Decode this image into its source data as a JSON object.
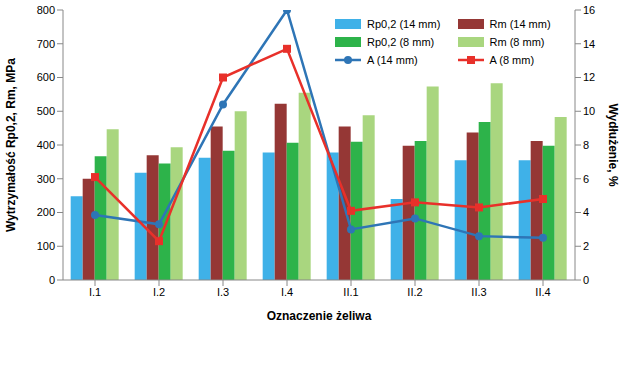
{
  "chart_data": {
    "type": "bar",
    "x_label": "Oznaczenie żeliwa",
    "y_label": "Wytrzymałość Rp0,2, Rm, MPa",
    "y2_label": "Wydłużenie, %",
    "categories": [
      "I.1",
      "I.2",
      "I.3",
      "I.4",
      "II.1",
      "II.2",
      "II.3",
      "II.4"
    ],
    "ylim": [
      0,
      800
    ],
    "yticks": [
      0,
      100,
      200,
      300,
      400,
      500,
      600,
      700,
      800
    ],
    "y2lim": [
      0,
      16
    ],
    "y2ticks": [
      0,
      2,
      4,
      6,
      8,
      10,
      12,
      14,
      16
    ],
    "grid": false,
    "legend": "upper right",
    "series": [
      {
        "name": "Rp0,2 (14 mm)",
        "type": "bar",
        "color": "#3fb1e8",
        "values": [
          248,
          318,
          362,
          378,
          378,
          240,
          355,
          355
        ]
      },
      {
        "name": "Rm (14 mm)",
        "type": "bar",
        "color": "#953735",
        "values": [
          300,
          370,
          455,
          522,
          455,
          398,
          437,
          412
        ]
      },
      {
        "name": "Rp0,2 (8 mm)",
        "type": "bar",
        "color": "#2db34a",
        "values": [
          367,
          345,
          383,
          407,
          410,
          412,
          468,
          398
        ]
      },
      {
        "name": "Rm (8 mm)",
        "type": "bar",
        "color": "#a9d67f",
        "values": [
          447,
          393,
          500,
          555,
          488,
          573,
          583,
          483
        ]
      },
      {
        "name": "A (14 mm)",
        "type": "line",
        "axis": "y2",
        "color": "#2e75b6",
        "marker": "circle",
        "values": [
          3.85,
          3.3,
          10.4,
          16.0,
          3.0,
          3.65,
          2.6,
          2.5
        ]
      },
      {
        "name": "A (8 mm)",
        "type": "line",
        "axis": "y2",
        "color": "#e8302a",
        "marker": "square",
        "values": [
          6.1,
          2.3,
          12.0,
          13.7,
          4.1,
          4.6,
          4.3,
          4.8
        ]
      }
    ]
  }
}
